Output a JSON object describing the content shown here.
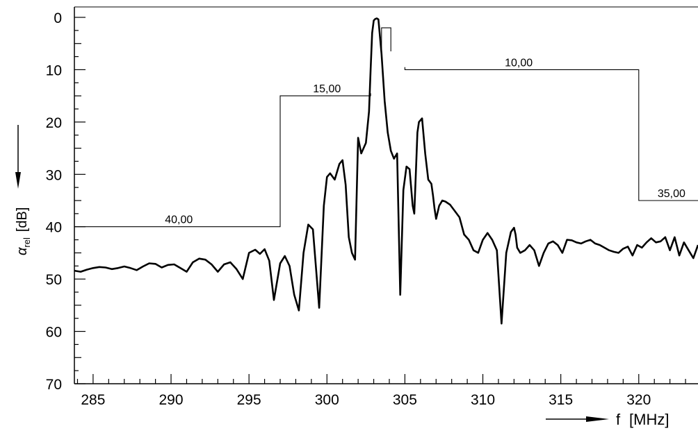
{
  "chart_data": {
    "type": "line",
    "title": "",
    "xlabel": {
      "symbol": "f",
      "unit": "[MHz]"
    },
    "ylabel": {
      "symbol": "α",
      "subscript": "rel",
      "unit": "[dB]"
    },
    "xlim": [
      283.8,
      323.8
    ],
    "ylim": [
      0,
      70
    ],
    "y_inverted": true,
    "grid": false,
    "x_ticks": [
      285,
      290,
      295,
      300,
      305,
      310,
      315,
      320
    ],
    "x_tick_labels": [
      "285",
      "290",
      "295",
      "300",
      "305",
      "310",
      "315",
      "320"
    ],
    "y_ticks": [
      0,
      10,
      20,
      30,
      40,
      50,
      60,
      70
    ],
    "y_tick_labels": [
      "0",
      "10",
      "20",
      "30",
      "40",
      "50",
      "60",
      "70"
    ],
    "series": [
      {
        "x": [
          283.8,
          284.2,
          284.6,
          285.0,
          285.4,
          285.8,
          286.2,
          286.6,
          287.0,
          287.4,
          287.8,
          288.2,
          288.6,
          289.0,
          289.4,
          289.8,
          290.2,
          290.6,
          291.0,
          291.4,
          291.8,
          292.2,
          292.6,
          293.0,
          293.4,
          293.8,
          294.2,
          294.6,
          295.0,
          295.4,
          295.7,
          296.0,
          296.3,
          296.6,
          297.0,
          297.3,
          297.6,
          297.9,
          298.2,
          298.5,
          298.8,
          299.1,
          299.5,
          299.8,
          300.0,
          300.2,
          300.5,
          300.8,
          301.0,
          301.2,
          301.4,
          301.6,
          301.8,
          302.0,
          302.2,
          302.5,
          302.7,
          302.8,
          302.9,
          303.0,
          303.1,
          303.2,
          303.3,
          303.5,
          303.7,
          303.9,
          304.1,
          304.3,
          304.5,
          304.7,
          304.9,
          305.1,
          305.3,
          305.5,
          305.6,
          305.7,
          305.8,
          305.9,
          306.1,
          306.3,
          306.5,
          306.7,
          306.8,
          306.9,
          307.0,
          307.2,
          307.4,
          307.6,
          307.9,
          308.2,
          308.5,
          308.8,
          309.1,
          309.4,
          309.7,
          310.0,
          310.3,
          310.6,
          310.9,
          311.2,
          311.5,
          311.8,
          312.0,
          312.1,
          312.2,
          312.4,
          312.7,
          313.0,
          313.3,
          313.6,
          313.9,
          314.2,
          314.5,
          314.8,
          315.1,
          315.4,
          315.7,
          316.0,
          316.3,
          316.6,
          316.9,
          317.2,
          317.5,
          317.8,
          318.1,
          318.4,
          318.7,
          319.0,
          319.3,
          319.6,
          319.9,
          320.2,
          320.5,
          320.8,
          321.1,
          321.4,
          321.7,
          322.0,
          322.3,
          322.6,
          322.9,
          323.2,
          323.5,
          323.8
        ],
        "y": [
          48.4,
          48.6,
          48.2,
          47.9,
          47.7,
          47.8,
          48.1,
          47.9,
          47.6,
          47.9,
          48.3,
          47.6,
          47.0,
          47.1,
          47.8,
          47.3,
          47.2,
          47.9,
          48.6,
          46.8,
          46.1,
          46.3,
          47.2,
          48.6,
          47.2,
          46.8,
          48.1,
          50.0,
          45.0,
          44.4,
          45.2,
          44.3,
          46.5,
          54.0,
          47.0,
          45.6,
          47.5,
          53.0,
          56.0,
          45.0,
          39.6,
          40.5,
          55.5,
          36.0,
          30.5,
          29.8,
          31.0,
          28.0,
          27.3,
          32.0,
          42.0,
          45.0,
          46.3,
          23.0,
          26.0,
          24.0,
          18.0,
          10.0,
          3.0,
          0.6,
          0.3,
          0.2,
          0.4,
          7.0,
          16.0,
          22.0,
          25.5,
          27.0,
          26.0,
          53.0,
          33.0,
          28.5,
          29.0,
          36.0,
          37.5,
          30.0,
          22.0,
          20.0,
          19.3,
          26.0,
          31.0,
          31.8,
          34.0,
          36.5,
          38.5,
          36.0,
          35.0,
          35.2,
          35.8,
          37.0,
          38.2,
          41.5,
          42.5,
          44.5,
          45.0,
          42.5,
          41.2,
          42.5,
          44.5,
          58.5,
          45.0,
          41.0,
          40.2,
          41.5,
          44.0,
          45.0,
          44.5,
          43.5,
          44.5,
          47.5,
          45.0,
          43.2,
          42.8,
          43.5,
          45.0,
          42.5,
          42.6,
          43.0,
          43.2,
          42.8,
          42.5,
          43.2,
          43.5,
          44.0,
          44.5,
          44.8,
          45.0,
          44.2,
          43.8,
          45.5,
          43.5,
          44.0,
          43.0,
          42.2,
          43.0,
          42.8,
          42.0,
          44.5,
          42.0,
          45.5,
          43.0,
          44.5,
          46.0,
          43.5
        ]
      }
    ],
    "annotations": [
      {
        "type": "mask",
        "x": [
          283.8,
          297.0,
          297.0,
          302.8,
          302.8
        ],
        "y": [
          40,
          40,
          15,
          15,
          14.5
        ],
        "labels": [
          {
            "text": "40,00",
            "x": 290.5,
            "y": 40
          },
          {
            "text": "15,00",
            "x": 300.0,
            "y": 15
          }
        ]
      },
      {
        "type": "mask",
        "x": [
          305.0,
          305.0,
          320.0,
          320.0,
          323.8
        ],
        "y": [
          9.5,
          10,
          10,
          35,
          35
        ],
        "labels": [
          {
            "text": "10,00",
            "x": 312.3,
            "y": 10
          },
          {
            "text": "35,00",
            "x": 322.1,
            "y": 35
          }
        ]
      },
      {
        "type": "mask",
        "x": [
          303.5,
          303.5,
          304.1,
          304.1
        ],
        "y": [
          6.5,
          2,
          2,
          6.5
        ],
        "labels": []
      }
    ]
  }
}
